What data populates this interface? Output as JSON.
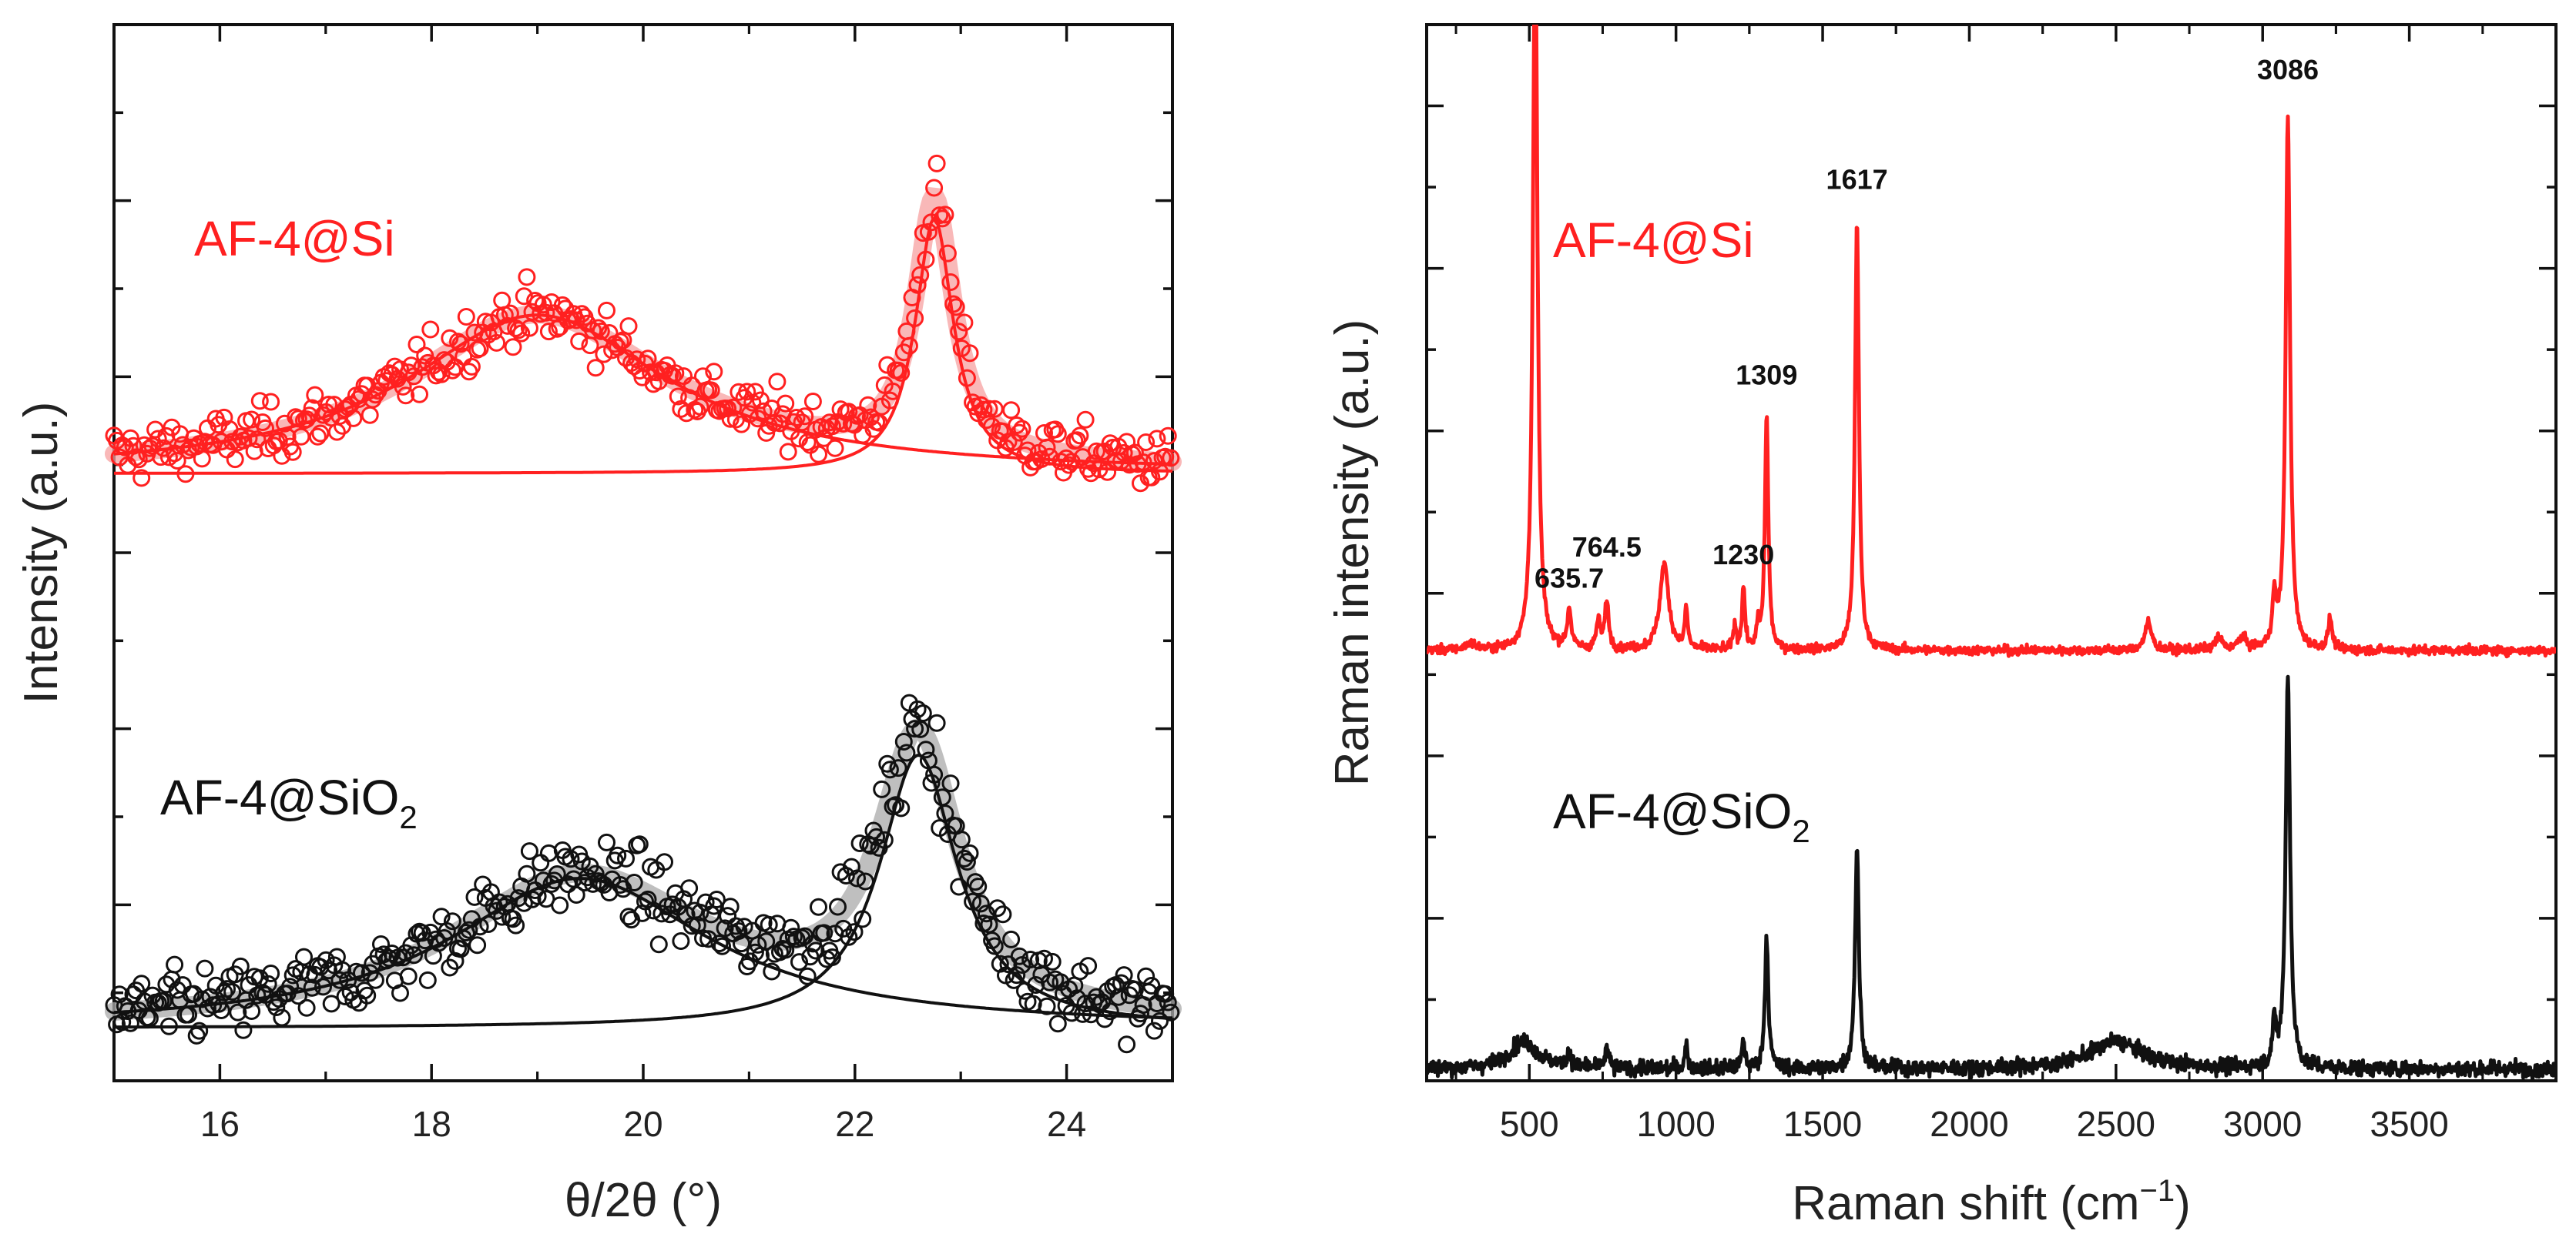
{
  "colors": {
    "red": "#ff2020",
    "red_band": "#f7a0a0",
    "black": "#111111",
    "grey_band": "#aaaaaa"
  },
  "chart_data": [
    {
      "type": "scatter",
      "title": "",
      "xlabel": "θ/2θ (°)",
      "ylabel": "Intensity (a.u.)",
      "xlim": [
        15,
        25
      ],
      "ylim": [
        0,
        6
      ],
      "xticks": [
        16,
        18,
        20,
        22,
        24
      ],
      "xtick_labels": [
        "16",
        "18",
        "20",
        "22",
        "24"
      ],
      "series": [
        {
          "name": "AF-4@Si",
          "label_main": "AF-4@Si",
          "color": "red",
          "baseline": 3.45,
          "peaks": [
            {
              "center": 19.0,
              "height": 0.9,
              "hwhm": 1.5
            },
            {
              "center": 22.75,
              "height": 1.45,
              "hwhm": 0.22
            }
          ],
          "noise": 0.11
        },
        {
          "name": "AF-4@SiO2",
          "label_main": "AF-4@SiO",
          "label_sub": "2",
          "color": "black",
          "baseline": 0.3,
          "peaks": [
            {
              "center": 19.4,
              "height": 0.85,
              "hwhm": 1.5
            },
            {
              "center": 22.6,
              "height": 1.55,
              "hwhm": 0.45
            }
          ],
          "noise": 0.14
        }
      ]
    },
    {
      "type": "line",
      "title": "",
      "xlabel": "Raman shift (cm",
      "xlabel_sup": "−1",
      "xlabel_end": ")",
      "ylabel": "Raman intensity (a.u.)",
      "xlim": [
        150,
        4000
      ],
      "ylim": [
        0,
        13.5
      ],
      "xticks": [
        500,
        1000,
        1500,
        2000,
        2500,
        3000,
        3500
      ],
      "xtick_labels": [
        "500",
        "1000",
        "1500",
        "2000",
        "2500",
        "3000",
        "3500"
      ],
      "series": [
        {
          "name": "AF-4@Si",
          "label_main": "AF-4@Si",
          "color": "red",
          "baseline": 5.5,
          "noise": 0.04,
          "peaks": [
            {
              "center": 520,
              "height": 9.5,
              "hwhm": 9
            },
            {
              "center": 300,
              "height": 0.08,
              "hwhm": 20
            },
            {
              "center": 636,
              "height": 0.5,
              "hwhm": 8
            },
            {
              "center": 735,
              "height": 0.35,
              "hwhm": 8
            },
            {
              "center": 764,
              "height": 0.6,
              "hwhm": 8
            },
            {
              "center": 960,
              "height": 1.1,
              "hwhm": 18
            },
            {
              "center": 1035,
              "height": 0.5,
              "hwhm": 6
            },
            {
              "center": 1200,
              "height": 0.3,
              "hwhm": 6
            },
            {
              "center": 1230,
              "height": 0.8,
              "hwhm": 6
            },
            {
              "center": 1280,
              "height": 0.3,
              "hwhm": 5
            },
            {
              "center": 1309,
              "height": 3.0,
              "hwhm": 7
            },
            {
              "center": 1617,
              "height": 5.5,
              "hwhm": 8
            },
            {
              "center": 2610,
              "height": 0.35,
              "hwhm": 14
            },
            {
              "center": 2850,
              "height": 0.15,
              "hwhm": 15
            },
            {
              "center": 2930,
              "height": 0.15,
              "hwhm": 15
            },
            {
              "center": 3040,
              "height": 0.6,
              "hwhm": 8
            },
            {
              "center": 3086,
              "height": 6.8,
              "hwhm": 9
            },
            {
              "center": 3230,
              "height": 0.4,
              "hwhm": 8
            }
          ],
          "annotations": [
            {
              "x": 636,
              "text": "635.7",
              "y": 6.3
            },
            {
              "x": 764,
              "text": "764.5",
              "y": 6.7
            },
            {
              "x": 1230,
              "text": "1230",
              "y": 6.6
            },
            {
              "x": 1309,
              "text": "1309",
              "y": 8.9
            },
            {
              "x": 1617,
              "text": "1617",
              "y": 11.4
            },
            {
              "x": 3086,
              "text": "3086",
              "y": 12.8
            }
          ]
        },
        {
          "name": "AF-4@SiO2",
          "label_main": "AF-4@SiO",
          "label_sub": "2",
          "color": "black",
          "baseline": 0.15,
          "noise": 0.07,
          "peaks": [
            {
              "center": 480,
              "height": 0.35,
              "hwhm": 60
            },
            {
              "center": 636,
              "height": 0.2,
              "hwhm": 8
            },
            {
              "center": 764,
              "height": 0.25,
              "hwhm": 8
            },
            {
              "center": 1035,
              "height": 0.3,
              "hwhm": 6
            },
            {
              "center": 1230,
              "height": 0.35,
              "hwhm": 6
            },
            {
              "center": 1309,
              "height": 1.7,
              "hwhm": 7
            },
            {
              "center": 1617,
              "height": 2.8,
              "hwhm": 8
            },
            {
              "center": 2500,
              "height": 0.35,
              "hwhm": 110
            },
            {
              "center": 3040,
              "height": 0.5,
              "hwhm": 8
            },
            {
              "center": 3086,
              "height": 5.0,
              "hwhm": 9
            }
          ]
        }
      ]
    }
  ]
}
